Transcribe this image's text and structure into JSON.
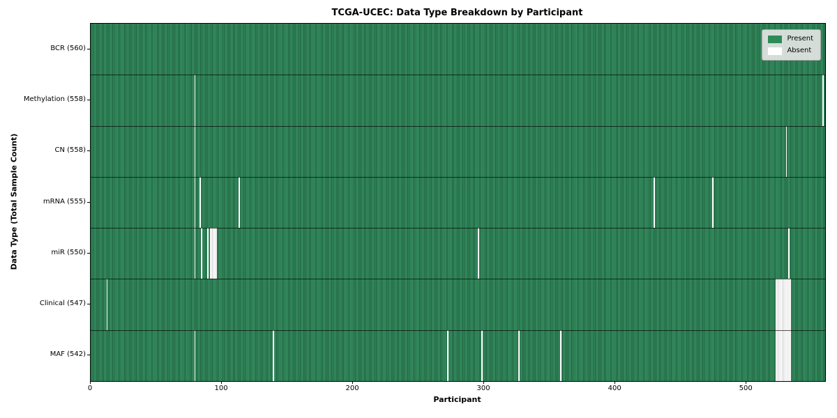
{
  "chart_data": {
    "type": "heatmap",
    "title": "TCGA-UCEC: Data Type Breakdown by Participant",
    "xlabel": "Participant",
    "ylabel": "Data Type (Total Sample Count)",
    "n_participants": 560,
    "x_ticks": [
      0,
      100,
      200,
      300,
      400,
      500
    ],
    "grid": false,
    "legend_position": "upper right",
    "legend": [
      {
        "label": "Present",
        "color": "#2e8b57"
      },
      {
        "label": "Absent",
        "color": "#ffffff"
      }
    ],
    "rows": [
      {
        "label": "BCR (560)",
        "total": 560,
        "absent_participants": []
      },
      {
        "label": "Methylation (558)",
        "total": 558,
        "absent_participants": [
          79,
          558
        ]
      },
      {
        "label": "CN (558)",
        "total": 558,
        "absent_participants": [
          79,
          530
        ]
      },
      {
        "label": "mRNA (555)",
        "total": 555,
        "absent_participants": [
          79,
          83,
          113,
          429,
          474
        ]
      },
      {
        "label": "miR (550)",
        "total": 550,
        "absent_participants": [
          79,
          84,
          89,
          91,
          92,
          93,
          94,
          95,
          295,
          532
        ]
      },
      {
        "label": "Clinical (547)",
        "total": 547,
        "absent_participants": [
          12,
          522,
          523,
          524,
          525,
          526,
          527,
          528,
          529,
          530,
          531,
          532,
          533
        ]
      },
      {
        "label": "MAF (542)",
        "total": 542,
        "absent_participants": [
          79,
          139,
          272,
          298,
          326,
          358,
          522,
          523,
          524,
          525,
          526,
          527,
          528,
          529,
          530,
          531,
          532,
          533
        ]
      }
    ]
  }
}
